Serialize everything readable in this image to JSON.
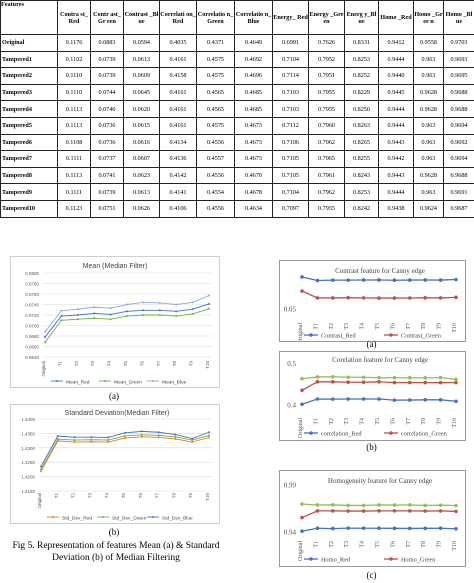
{
  "table": {
    "headers": [
      "Features",
      "Contra st_Red",
      "Contr ast_Gr een",
      "Contrast _Blue",
      "Correlati on_Red",
      "Correlatio n_Green",
      "Correlatio n_Blue",
      "Energy_ Red",
      "Energy _Green",
      "Energ y_Blue",
      "Homo _Red",
      "Homo _Gree n",
      "Homo _Blue"
    ],
    "rows": [
      [
        "Original",
        "0.1176",
        "0.0883",
        "0.0594",
        "0.4035",
        "0.4371",
        "0.4649",
        "0.6991",
        "0.7626",
        "0.8331",
        "0.9412",
        "0.9558",
        "0.9703"
      ],
      [
        "Tampered1",
        "0.1102",
        "0.0739",
        "0.0613",
        "0.4161",
        "0.4575",
        "0.4692",
        "0.7104",
        "0.7952",
        "0.8253",
        "0.9444",
        "0.963",
        "0.9693"
      ],
      [
        "Tampered2",
        "0.1110",
        "0.0739",
        "0.0609",
        "0.4158",
        "0.4575",
        "0.4696",
        "0.7114",
        "0.7951",
        "0.8252",
        "0.9440",
        "0.963",
        "0.9695"
      ],
      [
        "Tampered3",
        "0.1110",
        "0.0744",
        "0.0645",
        "0.4161",
        "0.4565",
        "0.4685",
        "0.7103",
        "0.7955",
        "0.8229",
        "0.9445",
        "0.9628",
        "0.9688"
      ],
      [
        "Tampered4",
        "0.1113",
        "0.0740",
        "0.0620",
        "0.4161",
        "0.4565",
        "0.4685",
        "0.7103",
        "0.7955",
        "0.8250",
        "0.9444",
        "0.9628",
        "0.9688"
      ],
      [
        "Tampered5",
        "0.1113",
        "0.0736",
        "0.0615",
        "0.4161",
        "0.4575",
        "0.4673",
        "0.7112",
        "0.7960",
        "0.8263",
        "0.9444",
        "0.963",
        "0.9694"
      ],
      [
        "Tampered6",
        "0.1108",
        "0.0736",
        "0.0616",
        "0.4134",
        "0.4556",
        "0.4673",
        "0.7106",
        "0.7962",
        "0.8265",
        "0.9443",
        "0.963",
        "0.9692"
      ],
      [
        "Tampered7",
        "0.1111",
        "0.0737",
        "0.0607",
        "0.4136",
        "0.4557",
        "0.4673",
        "0.7105",
        "0.7965",
        "0.8255",
        "0.9442",
        "0.963",
        "0.9694"
      ],
      [
        "Tampered8",
        "0.1113",
        "0.0741",
        "0.0623",
        "0.4142",
        "0.4556",
        "0.4670",
        "0.7105",
        "0.7961",
        "0.8243",
        "0.9443",
        "0.9628",
        "0.9688"
      ],
      [
        "Tampered9",
        "0.1111",
        "0.0739",
        "0.0613",
        "0.4141",
        "0.4554",
        "0.4678",
        "0.7104",
        "0.7962",
        "0.8253",
        "0.9444",
        "0.963",
        "0.9691"
      ],
      [
        "Tampered10",
        "0.1123",
        "0.0751",
        "0.0626",
        "0.4106",
        "0.4556",
        "0.4634",
        "0.7097",
        "0.7955",
        "0.8242",
        "0.9438",
        "0.9624",
        "0.9687"
      ]
    ]
  },
  "captions": {
    "mean_sub": "(a)",
    "std_sub": "(b)",
    "figure": "Fig 5. Representation of features Mean (a) & Standard Deviation (b) of Median Filtering",
    "contrast_sub": "(a)",
    "correlation_sub": "(b)",
    "homogeneity_sub": "(c)"
  },
  "chart_data": [
    {
      "id": "mean",
      "type": "line",
      "title": "Mean (Median Filter)",
      "categories": [
        "Original",
        "T1",
        "T2",
        "T3",
        "T4",
        "T5",
        "T6",
        "T7",
        "T8",
        "T9",
        "T10"
      ],
      "yticks": [
        "0.9800",
        "0.9780",
        "0.9760",
        "0.9740",
        "0.9720",
        "0.9700",
        "0.9680",
        "0.9660",
        "0.9640"
      ],
      "ylim": [
        0.964,
        0.98
      ],
      "series": [
        {
          "name": "Mean_Red",
          "color": "#4472C4",
          "values": [
            0.9678,
            0.9718,
            0.972,
            0.9723,
            0.9721,
            0.9727,
            0.9729,
            0.9729,
            0.9727,
            0.9731,
            0.9741
          ]
        },
        {
          "name": "Mean_Green",
          "color": "#70AD47",
          "values": [
            0.9668,
            0.971,
            0.9712,
            0.9714,
            0.9712,
            0.9718,
            0.972,
            0.972,
            0.9718,
            0.9722,
            0.9732
          ]
        },
        {
          "name": "Mean_Blue",
          "color": "#8FAADC",
          "values": [
            0.9688,
            0.9728,
            0.9731,
            0.9735,
            0.9733,
            0.974,
            0.9744,
            0.9743,
            0.974,
            0.9744,
            0.9757
          ]
        }
      ],
      "legend": "bottom"
    },
    {
      "id": "std",
      "type": "line",
      "title": "Standard Deviation(Median Filter)",
      "categories": [
        "Original",
        "T1",
        "T2",
        "T3",
        "T4",
        "T5",
        "T6",
        "T7",
        "T8",
        "T9",
        "T10"
      ],
      "yticks": [
        "1.4400",
        "1.4350",
        "1.4300",
        "1.4250",
        "1.4200",
        "1.4150"
      ],
      "ylim": [
        1.415,
        1.44
      ],
      "series": [
        {
          "name": "Std_Dev_Red",
          "color": "#ED7D31",
          "values": [
            1.4218,
            1.4324,
            1.432,
            1.4321,
            1.432,
            1.4334,
            1.4338,
            1.4336,
            1.4331,
            1.432,
            1.4336
          ]
        },
        {
          "name": "Std_Dev_Green",
          "color": "#70AD47",
          "values": [
            1.4225,
            1.433,
            1.4327,
            1.4328,
            1.4327,
            1.4341,
            1.4345,
            1.4343,
            1.4338,
            1.4327,
            1.4343
          ]
        },
        {
          "name": "Std_Dev_Blue",
          "color": "#4472C4",
          "values": [
            1.4235,
            1.4341,
            1.4337,
            1.4337,
            1.4336,
            1.4352,
            1.4357,
            1.4354,
            1.4346,
            1.4332,
            1.4354
          ]
        }
      ],
      "legend": "bottom"
    },
    {
      "id": "contrast",
      "type": "line",
      "title": "Contrast feature for Canny edge",
      "categories": [
        "Original",
        "T1",
        "T2",
        "T3",
        "T4",
        "T5",
        "T6",
        "T7",
        "T8",
        "T9",
        "T10"
      ],
      "yticks": [
        "0.05"
      ],
      "ylim": [
        0.03,
        0.13
      ],
      "series": [
        {
          "name": "Contrast_Red",
          "color": "#4472C4",
          "values": [
            0.1176,
            0.1102,
            0.111,
            0.111,
            0.1113,
            0.1113,
            0.1108,
            0.1111,
            0.1113,
            0.1111,
            0.1123
          ]
        },
        {
          "name": "Contrast_Green",
          "color": "#C0504D",
          "values": [
            0.0883,
            0.0739,
            0.0739,
            0.0744,
            0.074,
            0.0736,
            0.0736,
            0.0737,
            0.0741,
            0.0739,
            0.0751
          ]
        }
      ],
      "legend": "bottom"
    },
    {
      "id": "correlation",
      "type": "line",
      "title": "Corelation feature for Canny edge",
      "categories": [
        "Original",
        "T1",
        "T2",
        "T3",
        "T4",
        "T5",
        "T6",
        "T7",
        "T8",
        "T9",
        "T10"
      ],
      "yticks": [
        "0.5",
        "0.4"
      ],
      "ylim": [
        0.38,
        0.51
      ],
      "series": [
        {
          "name": "correlation_Red",
          "color": "#4472C4",
          "values": [
            0.4035,
            0.4161,
            0.4158,
            0.4161,
            0.4161,
            0.4161,
            0.4134,
            0.4136,
            0.4142,
            0.4141,
            0.4106
          ]
        },
        {
          "name": "correlation_Green",
          "color": "#C0504D",
          "values": [
            0.4371,
            0.4575,
            0.4575,
            0.4565,
            0.4565,
            0.4575,
            0.4556,
            0.4557,
            0.4556,
            0.4554,
            0.4556
          ]
        },
        {
          "name": "",
          "color": "#9BBB59",
          "values": [
            0.4649,
            0.4692,
            0.4696,
            0.4685,
            0.4685,
            0.4673,
            0.4673,
            0.4673,
            0.467,
            0.4678,
            0.4634
          ]
        }
      ],
      "legend": "bottom"
    },
    {
      "id": "homogeneity",
      "type": "line",
      "title": "Homogeneity feature for Canny edge",
      "categories": [
        "Original",
        "T1",
        "T2",
        "T3",
        "T4",
        "T5",
        "T6",
        "T7",
        "T8",
        "T9",
        "T10"
      ],
      "yticks": [
        "0.99",
        "0.94"
      ],
      "ylim": [
        0.935,
        0.995
      ],
      "series": [
        {
          "name": "Homo_Red",
          "color": "#4472C4",
          "values": [
            0.9412,
            0.9444,
            0.944,
            0.9445,
            0.9444,
            0.9444,
            0.9443,
            0.9442,
            0.9443,
            0.9444,
            0.9438
          ]
        },
        {
          "name": "Homo_Green",
          "color": "#C0504D",
          "values": [
            0.9558,
            0.963,
            0.963,
            0.9628,
            0.9628,
            0.963,
            0.963,
            0.963,
            0.9628,
            0.963,
            0.9624
          ]
        },
        {
          "name": "",
          "color": "#9BBB59",
          "values": [
            0.9703,
            0.9693,
            0.9695,
            0.9688,
            0.9688,
            0.9694,
            0.9692,
            0.9694,
            0.9688,
            0.9691,
            0.9687
          ]
        }
      ],
      "legend": "bottom"
    }
  ]
}
